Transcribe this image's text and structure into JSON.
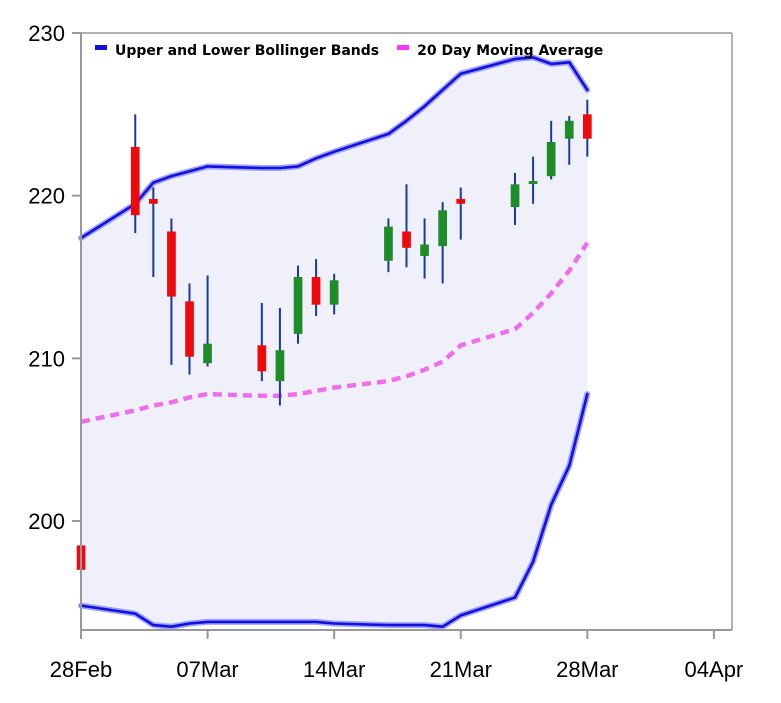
{
  "chart_data": {
    "type": "candlestick",
    "legend": [
      {
        "label": "Upper and Lower Bollinger Bands",
        "color": "#1010e0"
      },
      {
        "label": "20 Day Moving Average",
        "color": "#ff33ff"
      }
    ],
    "legend_placement": "top-left",
    "grid": false,
    "colors": {
      "up": "#1e8c28",
      "down": "#ee0a0a",
      "wick": "#1a3aa0",
      "band_line": "#1010e0",
      "band_fill": "#f0f0fb",
      "sma": "#ee6fee"
    },
    "x_axis": {
      "range": [
        "2022-02-28",
        "2022-04-05"
      ],
      "ticks": [
        {
          "date": "2022-02-28",
          "label": "28Feb"
        },
        {
          "date": "2022-03-07",
          "label": "07Mar"
        },
        {
          "date": "2022-03-14",
          "label": "14Mar"
        },
        {
          "date": "2022-03-21",
          "label": "21Mar"
        },
        {
          "date": "2022-03-28",
          "label": "28Mar"
        },
        {
          "date": "2022-04-04",
          "label": "04Apr"
        }
      ]
    },
    "y_axis": {
      "range": [
        193.3,
        230
      ],
      "ticks": [
        200,
        210,
        220,
        230
      ]
    },
    "candles": [
      {
        "date": "2022-02-28",
        "open": 198.5,
        "high": 198.6,
        "low": 197.0,
        "close": 197.0
      },
      {
        "date": "2022-03-03",
        "open": 223.0,
        "high": 225.0,
        "low": 217.7,
        "close": 218.8
      },
      {
        "date": "2022-03-04",
        "open": 219.8,
        "high": 220.5,
        "low": 215.0,
        "close": 219.5
      },
      {
        "date": "2022-03-05",
        "open": 217.8,
        "high": 218.6,
        "low": 209.6,
        "close": 213.8
      },
      {
        "date": "2022-03-06",
        "open": 213.5,
        "high": 214.6,
        "low": 209.0,
        "close": 210.1
      },
      {
        "date": "2022-03-07",
        "open": 209.7,
        "high": 215.1,
        "low": 209.5,
        "close": 210.9
      },
      {
        "date": "2022-03-10",
        "open": 210.8,
        "high": 213.4,
        "low": 208.6,
        "close": 209.2
      },
      {
        "date": "2022-03-11",
        "open": 208.6,
        "high": 213.1,
        "low": 207.1,
        "close": 210.5
      },
      {
        "date": "2022-03-12",
        "open": 211.5,
        "high": 215.7,
        "low": 210.9,
        "close": 215.0
      },
      {
        "date": "2022-03-13",
        "open": 215.0,
        "high": 216.1,
        "low": 212.6,
        "close": 213.3
      },
      {
        "date": "2022-03-14",
        "open": 213.3,
        "high": 215.2,
        "low": 212.7,
        "close": 214.8
      },
      {
        "date": "2022-03-17",
        "open": 216.0,
        "high": 218.6,
        "low": 215.3,
        "close": 218.1
      },
      {
        "date": "2022-03-18",
        "open": 217.8,
        "high": 220.7,
        "low": 215.6,
        "close": 216.8
      },
      {
        "date": "2022-03-19",
        "open": 216.3,
        "high": 218.6,
        "low": 214.9,
        "close": 217.0
      },
      {
        "date": "2022-03-20",
        "open": 216.9,
        "high": 219.6,
        "low": 214.6,
        "close": 219.1
      },
      {
        "date": "2022-03-21",
        "open": 219.8,
        "high": 220.5,
        "low": 217.3,
        "close": 219.5
      },
      {
        "date": "2022-03-24",
        "open": 219.3,
        "high": 221.4,
        "low": 218.2,
        "close": 220.7
      },
      {
        "date": "2022-03-25",
        "open": 220.8,
        "high": 222.4,
        "low": 219.5,
        "close": 220.9
      },
      {
        "date": "2022-03-26",
        "open": 221.2,
        "high": 224.6,
        "low": 221.0,
        "close": 223.3
      },
      {
        "date": "2022-03-27",
        "open": 223.5,
        "high": 224.9,
        "low": 221.9,
        "close": 224.6
      },
      {
        "date": "2022-03-28",
        "open": 225.0,
        "high": 225.9,
        "low": 222.4,
        "close": 223.5
      }
    ],
    "bollinger": [
      {
        "date": "2022-02-28",
        "upper": 217.4,
        "sma": 206.1,
        "lower": 194.8
      },
      {
        "date": "2022-03-03",
        "upper": 219.5,
        "sma": 206.8,
        "lower": 194.3
      },
      {
        "date": "2022-03-04",
        "upper": 220.8,
        "sma": 207.1,
        "lower": 193.6
      },
      {
        "date": "2022-03-05",
        "upper": 221.2,
        "sma": 207.3,
        "lower": 193.5
      },
      {
        "date": "2022-03-06",
        "upper": 221.5,
        "sma": 207.6,
        "lower": 193.7
      },
      {
        "date": "2022-03-07",
        "upper": 221.8,
        "sma": 207.8,
        "lower": 193.8
      },
      {
        "date": "2022-03-10",
        "upper": 221.7,
        "sma": 207.7,
        "lower": 193.8
      },
      {
        "date": "2022-03-11",
        "upper": 221.7,
        "sma": 207.7,
        "lower": 193.8
      },
      {
        "date": "2022-03-12",
        "upper": 221.8,
        "sma": 207.8,
        "lower": 193.8
      },
      {
        "date": "2022-03-13",
        "upper": 222.3,
        "sma": 208.0,
        "lower": 193.8
      },
      {
        "date": "2022-03-14",
        "upper": 222.7,
        "sma": 208.2,
        "lower": 193.7
      },
      {
        "date": "2022-03-17",
        "upper": 223.8,
        "sma": 208.6,
        "lower": 193.6
      },
      {
        "date": "2022-03-18",
        "upper": 224.6,
        "sma": 208.9,
        "lower": 193.6
      },
      {
        "date": "2022-03-19",
        "upper": 225.5,
        "sma": 209.3,
        "lower": 193.6
      },
      {
        "date": "2022-03-20",
        "upper": 226.5,
        "sma": 209.8,
        "lower": 193.5
      },
      {
        "date": "2022-03-21",
        "upper": 227.5,
        "sma": 210.8,
        "lower": 194.2
      },
      {
        "date": "2022-03-24",
        "upper": 228.4,
        "sma": 211.8,
        "lower": 195.3
      },
      {
        "date": "2022-03-25",
        "upper": 228.5,
        "sma": 212.8,
        "lower": 197.5
      },
      {
        "date": "2022-03-26",
        "upper": 228.1,
        "sma": 214.0,
        "lower": 201.0
      },
      {
        "date": "2022-03-27",
        "upper": 228.2,
        "sma": 215.4,
        "lower": 203.4
      },
      {
        "date": "2022-03-28",
        "upper": 226.5,
        "sma": 217.1,
        "lower": 207.8
      }
    ]
  }
}
